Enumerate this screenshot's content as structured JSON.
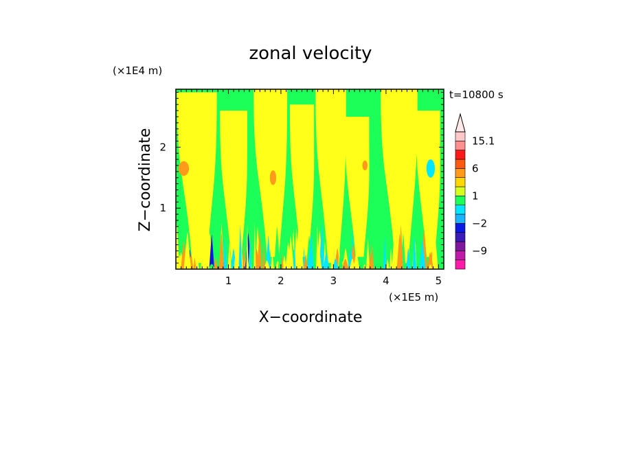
{
  "chart_data": {
    "type": "heatmap",
    "title": "zonal velocity",
    "xlabel": "X−coordinate",
    "ylabel": "Z−coordinate",
    "x_unit": "(×1E5 m)",
    "y_unit": "(×1E4 m)",
    "time_label": "t=10800 s",
    "xlim": [
      0,
      5.1
    ],
    "ylim": [
      0,
      2.95
    ],
    "x_ticks": [
      "1",
      "2",
      "3",
      "4",
      "5"
    ],
    "y_ticks": [
      "1",
      "2"
    ],
    "colorbar": {
      "labels": [
        "15.1",
        "6",
        "1",
        "−2",
        "−9"
      ],
      "label_values": [
        15.1,
        6,
        1,
        -2,
        -9
      ],
      "levels": [
        -15,
        -12,
        -9,
        -6,
        -3,
        -2,
        -1,
        0,
        1,
        2,
        3,
        6,
        9,
        12,
        15.1
      ],
      "colors": [
        "#ff1aa8",
        "#c01aa8",
        "#80189e",
        "#3a1ab8",
        "#0a1ae0",
        "#1ab4ff",
        "#00e6ff",
        "#1cff58",
        "#d7ff1c",
        "#ffd800",
        "#ff9a1a",
        "#ff5a10",
        "#ff1a1a",
        "#ff9090",
        "#ffc8c8"
      ],
      "extend": "max"
    },
    "colors": {
      "background_field": "#1cff58",
      "positive_weak": "#ffff1a",
      "orange": "#ff9a1a",
      "cyan": "#00e6ff",
      "blue": "#0a1ae0"
    },
    "features": [
      {
        "kind": "plume",
        "x": 0.45,
        "w": 0.55,
        "z_bottom": 0.1,
        "z_top": 2.9,
        "sign": "positive"
      },
      {
        "kind": "plume",
        "x": 1.15,
        "w": 0.35,
        "z_bottom": 0.1,
        "z_top": 2.6,
        "sign": "positive"
      },
      {
        "kind": "plume",
        "x": 1.85,
        "w": 0.45,
        "z_bottom": 0.2,
        "z_top": 2.95,
        "sign": "positive"
      },
      {
        "kind": "plume",
        "x": 2.45,
        "w": 0.3,
        "z_bottom": 0.2,
        "z_top": 2.7,
        "sign": "positive"
      },
      {
        "kind": "plume",
        "x": 3.0,
        "w": 0.4,
        "z_bottom": 0.1,
        "z_top": 2.95,
        "sign": "positive"
      },
      {
        "kind": "plume",
        "x": 3.5,
        "w": 0.3,
        "z_bottom": 0.2,
        "z_top": 2.5,
        "sign": "positive"
      },
      {
        "kind": "plume",
        "x": 4.3,
        "w": 0.5,
        "z_bottom": 0.1,
        "z_top": 2.95,
        "sign": "positive"
      },
      {
        "kind": "plume",
        "x": 4.85,
        "w": 0.3,
        "z_bottom": 0.2,
        "z_top": 2.6,
        "sign": "positive"
      },
      {
        "kind": "blob",
        "x": 0.15,
        "z": 1.65,
        "rx": 0.1,
        "rz": 0.12,
        "level": "orange"
      },
      {
        "kind": "blob",
        "x": 1.85,
        "z": 1.5,
        "rx": 0.06,
        "rz": 0.12,
        "level": "orange"
      },
      {
        "kind": "blob",
        "x": 3.6,
        "z": 1.7,
        "rx": 0.05,
        "rz": 0.08,
        "level": "orange"
      },
      {
        "kind": "blob",
        "x": 4.85,
        "z": 1.65,
        "rx": 0.08,
        "rz": 0.15,
        "level": "cyan"
      }
    ]
  }
}
